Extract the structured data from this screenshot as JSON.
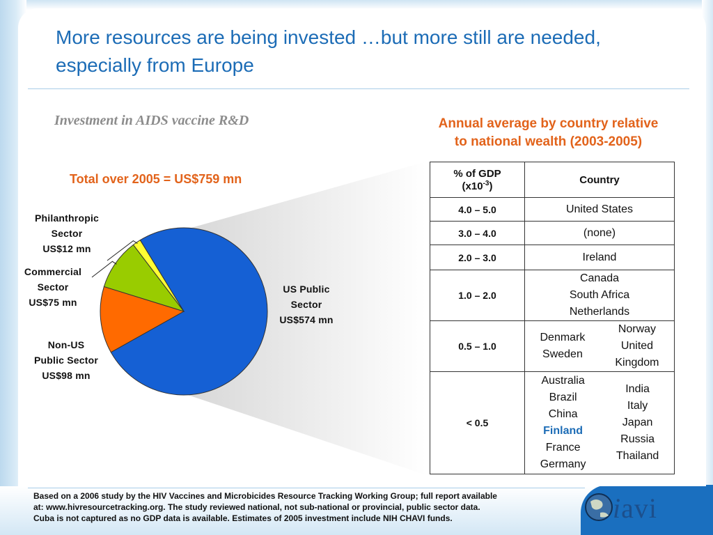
{
  "slide": {
    "title": "More resources are being invested …but more still are needed, especially from Europe",
    "chart_subtitle": "Investment in AIDS vaccine R&D",
    "total_label": "Total over 2005  = US$759 mn",
    "table_heading_line1": "Annual average by country relative",
    "table_heading_line2": "to national wealth (2003-2005)"
  },
  "chart_data": {
    "type": "pie",
    "title": "Total over 2005  = US$759 mn",
    "unit": "US$ mn",
    "slices": [
      {
        "name": "US Public Sector",
        "value": 574,
        "label": "US$574 mn",
        "color": "#1560d4"
      },
      {
        "name": "Non-US Public Sector",
        "value": 98,
        "label": "US$98 mn",
        "color": "#ff6a00"
      },
      {
        "name": "Commercial Sector",
        "value": 75,
        "label": "US$75 mn",
        "color": "#99cc00"
      },
      {
        "name": "Philanthropic Sector",
        "value": 12,
        "label": "US$12 mn",
        "color": "#ffff33"
      }
    ]
  },
  "pie_labels": {
    "us_public": [
      "US Public",
      "Sector",
      "US$574 mn"
    ],
    "non_us": [
      "Non-US",
      "Public Sector",
      "US$98 mn"
    ],
    "commercial": [
      "Commercial",
      "Sector",
      "US$75 mn"
    ],
    "philanthropic": [
      "Philanthropic",
      "Sector",
      "US$12 mn"
    ]
  },
  "table": {
    "header_gdp_line1": "% of GDP",
    "header_gdp_prefix": "(x10",
    "header_gdp_exp": "-3",
    "header_gdp_suffix": ")",
    "header_country": "Country",
    "rows": [
      {
        "band": "4.0 – 5.0",
        "col1": [
          "United States"
        ],
        "col2": []
      },
      {
        "band": "3.0 – 4.0",
        "col1": [
          "(none)"
        ],
        "col2": []
      },
      {
        "band": "2.0 – 3.0",
        "col1": [
          "Ireland"
        ],
        "col2": []
      },
      {
        "band": "1.0 – 2.0",
        "col1": [
          "Canada",
          "South Africa",
          "Netherlands"
        ],
        "col2": []
      },
      {
        "band": "0.5 – 1.0",
        "col1": [
          "Denmark",
          "Sweden"
        ],
        "col2": [
          "Norway",
          "United",
          "Kingdom"
        ]
      },
      {
        "band": "< 0.5",
        "col1": [
          "Australia",
          "Brazil",
          "China",
          "Finland",
          "France",
          "Germany"
        ],
        "col2": [
          "India",
          "Italy",
          "Japan",
          "Russia",
          "Thailand"
        ]
      }
    ],
    "highlight": "Finland"
  },
  "footnote": {
    "line1": "Based on a 2006 study by the HIV Vaccines and Microbicides Resource Tracking Working Group; full report  available",
    "line2": "at: www.hivresourcetracking.org. The study reviewed national, not sub-national or provincial, public sector data.",
    "line3": "Cuba is not captured as no GDP data is available.  Estimates of 2005 investment include NIH CHAVI funds."
  },
  "logo": {
    "text": "avi",
    "initial": "i"
  },
  "colors": {
    "title": "#1c6cb6",
    "accent": "#e2631b",
    "frame": "#1a6fbf"
  }
}
